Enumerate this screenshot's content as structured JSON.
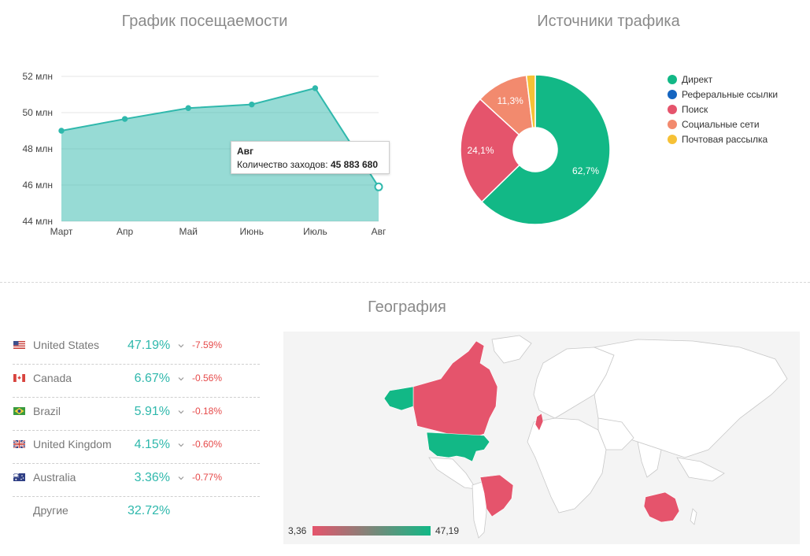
{
  "visits": {
    "title": "График посещаемости",
    "tooltip": {
      "title": "Авг",
      "label": "Количество заходов:",
      "value": "45 883 680"
    }
  },
  "traffic": {
    "title": "Источники трафика",
    "legend": [
      {
        "label": "Директ",
        "color": "#12b886"
      },
      {
        "label": "Реферальные ссылки",
        "color": "#1565c0"
      },
      {
        "label": "Поиск",
        "color": "#e5546c"
      },
      {
        "label": "Социальные сети",
        "color": "#f28a6e"
      },
      {
        "label": "Почтовая рассылка",
        "color": "#f6c136"
      }
    ]
  },
  "geo": {
    "title": "География",
    "rows": [
      {
        "country": "United States",
        "percent": "47.19%",
        "delta": "-7.59%",
        "flag": "us-flag-icon"
      },
      {
        "country": "Canada",
        "percent": "6.67%",
        "delta": "-0.56%",
        "flag": "canada-flag-icon"
      },
      {
        "country": "Brazil",
        "percent": "5.91%",
        "delta": "-0.18%",
        "flag": "brazil-flag-icon"
      },
      {
        "country": "United Kingdom",
        "percent": "4.15%",
        "delta": "-0.60%",
        "flag": "uk-flag-icon"
      },
      {
        "country": "Australia",
        "percent": "3.36%",
        "delta": "-0.77%",
        "flag": "australia-flag-icon"
      }
    ],
    "other": {
      "label": "Другие",
      "percent": "32.72%"
    },
    "scale": {
      "min": "3,36",
      "max": "47,19"
    },
    "colors": {
      "high": "#12b886",
      "low": "#e5546c"
    }
  },
  "chart_data": [
    {
      "type": "area",
      "title": "График посещаемости",
      "categories": [
        "Март",
        "Апр",
        "Май",
        "Июнь",
        "Июль",
        "Авг"
      ],
      "values": [
        49.0,
        49.65,
        50.25,
        50.45,
        51.35,
        45.9
      ],
      "ylim": [
        44,
        52
      ],
      "yticks": [
        "44 млн",
        "46 млн",
        "48 млн",
        "50 млн",
        "52 млн"
      ],
      "color": "#2fb8ac"
    },
    {
      "type": "pie",
      "title": "Источники трафика",
      "labels": [
        "Директ",
        "Реферальные ссылки",
        "Поиск",
        "Социальные сети",
        "Почтовая рассылка"
      ],
      "values": [
        62.7,
        0.0,
        24.1,
        11.3,
        1.9
      ],
      "display_labels": [
        "62,7%",
        "",
        "24,1%",
        "11,3%",
        ""
      ],
      "colors": [
        "#12b886",
        "#1565c0",
        "#e5546c",
        "#f28a6e",
        "#f6c136"
      ]
    }
  ]
}
